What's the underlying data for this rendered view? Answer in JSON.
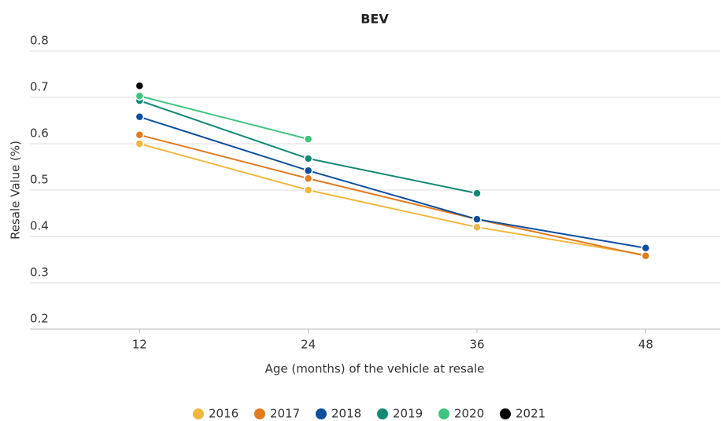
{
  "chart_data": {
    "type": "line",
    "title": "BEV",
    "x_label": "Age (months) of the vehicle at resale",
    "y_label": "Resale Value (%)",
    "x": [
      12,
      24,
      36,
      48
    ],
    "series": [
      {
        "name": "2016",
        "color": "#f0b840",
        "values": [
          0.6,
          0.5,
          0.42,
          0.36
        ]
      },
      {
        "name": "2017",
        "color": "#e07b1f",
        "values": [
          0.619,
          0.525,
          0.437,
          0.358
        ]
      },
      {
        "name": "2018",
        "color": "#0d4e9e",
        "values": [
          0.658,
          0.542,
          0.437,
          0.375
        ]
      },
      {
        "name": "2019",
        "color": "#138a76",
        "values": [
          0.693,
          0.568,
          0.493,
          null
        ]
      },
      {
        "name": "2020",
        "color": "#3ec47e",
        "values": [
          0.703,
          0.61,
          null,
          null
        ]
      },
      {
        "name": "2021",
        "color": "#000000",
        "values": [
          0.725,
          null,
          null,
          null
        ]
      }
    ],
    "xlim": [
      4.2,
      53.3
    ],
    "xticks": [
      12,
      24,
      36,
      48
    ],
    "ylim": [
      0.2,
      0.8
    ],
    "yticks": [
      0.2,
      0.3,
      0.4,
      0.5,
      0.6,
      0.7,
      0.8
    ],
    "grid": true
  }
}
